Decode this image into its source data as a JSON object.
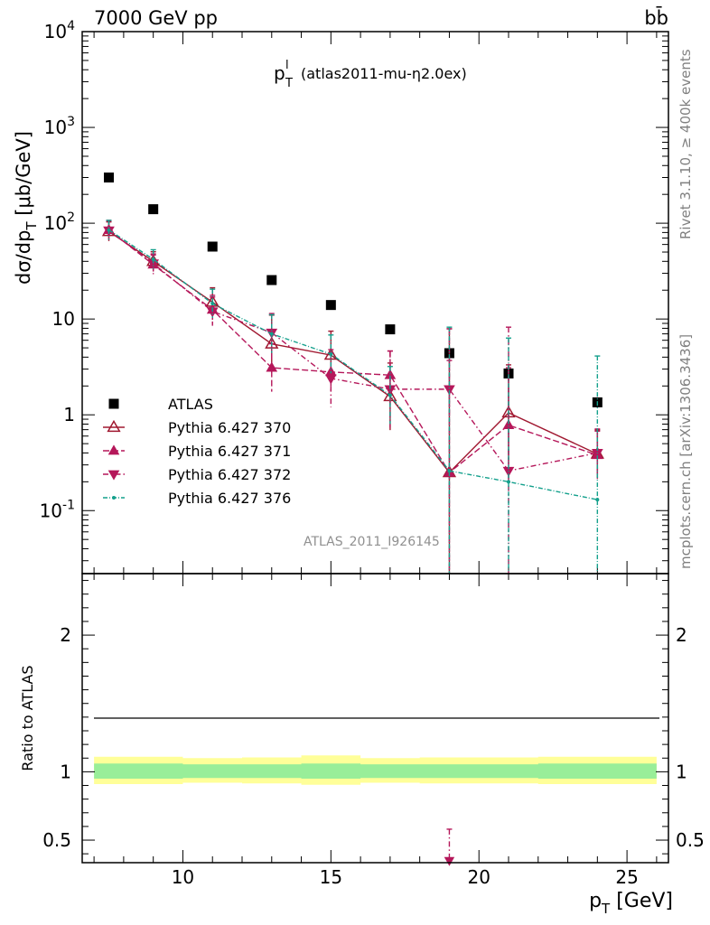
{
  "header": {
    "energy_label": "7000 GeV pp",
    "process_label": "bb̄",
    "rivet_label": "Rivet 3.1.10, ≥ 400k events",
    "mcplots_label": "mcplots.cern.ch [arXiv:1306.3436]",
    "analysis_label": "ATLAS_2011_I926145"
  },
  "chart_data": [
    {
      "type": "scatter",
      "panel": "main",
      "title_main": "p",
      "title_sup": "l",
      "title_sub": "T",
      "title_rest": "(atlas2011-mu-η2.0ex)",
      "ylabel": "dσ/dp_T [μb/GeV]",
      "yscale": "log",
      "xlim": [
        6.6,
        26.4
      ],
      "ylim": [
        0.022,
        10000
      ],
      "y_ticks": [
        {
          "v": 0.1,
          "label": "10^-1"
        },
        {
          "v": 1,
          "label": "1"
        },
        {
          "v": 10,
          "label": "10"
        },
        {
          "v": 100,
          "label": "10^2"
        },
        {
          "v": 1000,
          "label": "10^3"
        },
        {
          "v": 10000,
          "label": "10^4"
        }
      ],
      "legend": {
        "position": "lower-left"
      },
      "series": [
        {
          "name": "ATLAS",
          "color": "#000000",
          "marker": "square",
          "x": [
            7.5,
            9,
            11,
            13,
            15,
            17,
            19,
            21,
            24
          ],
          "y": [
            300,
            140,
            57,
            25.5,
            14,
            7.8,
            4.4,
            2.7,
            1.35
          ]
        },
        {
          "name": "Pythia 6.427 370",
          "color": "#a01830",
          "marker": "triangle-up-open",
          "dash": "",
          "x": [
            7.5,
            9,
            11,
            13,
            15,
            17,
            19,
            21,
            24
          ],
          "y": [
            82,
            40,
            15,
            5.5,
            4.2,
            1.55,
            0.25,
            1.05,
            0.39
          ],
          "err": [
            0.1,
            0.1,
            0.15,
            0.3,
            0.25,
            0.35,
            1.5,
            0.5,
            0.25
          ]
        },
        {
          "name": "Pythia 6.427 371",
          "color": "#b5175a",
          "marker": "triangle-up",
          "dash": "7,3",
          "x": [
            7.5,
            9,
            11,
            13,
            15,
            17,
            19,
            21,
            24
          ],
          "y": [
            85,
            37,
            12.5,
            3.1,
            2.8,
            2.6,
            0.25,
            0.78,
            0.38
          ],
          "err": [
            0.1,
            0.1,
            0.15,
            0.25,
            0.2,
            0.25,
            1.5,
            0.6,
            0.25
          ]
        },
        {
          "name": "Pythia 6.427 372",
          "color": "#b5175a",
          "marker": "triangle-down",
          "dash": "6,3,1.5,3",
          "x": [
            7.5,
            9,
            11,
            13,
            15,
            17,
            19,
            21,
            24
          ],
          "y": [
            84,
            38,
            12,
            7.2,
            2.4,
            1.85,
            1.85,
            0.26,
            0.4
          ],
          "err": [
            0.1,
            0.1,
            0.15,
            0.2,
            0.3,
            0.4,
            0.3,
            1.5,
            0.25
          ]
        },
        {
          "name": "Pythia 6.427 376",
          "color": "#14a08c",
          "marker": "dot",
          "dash": "5,2,1,2",
          "x": [
            7.5,
            9,
            11,
            13,
            15,
            17,
            19,
            21,
            24
          ],
          "y": [
            85,
            42,
            14.5,
            7.0,
            4.3,
            1.6,
            0.26,
            0.2,
            0.13
          ],
          "err": [
            0.1,
            0.1,
            0.15,
            0.2,
            0.2,
            0.3,
            1.5,
            1.5,
            1.5
          ]
        }
      ]
    },
    {
      "type": "line",
      "panel": "ratio",
      "ylabel": "Ratio to ATLAS",
      "xlabel": "p_T [GeV]",
      "xlim": [
        6.6,
        26.4
      ],
      "ylim": [
        0.335,
        2.45
      ],
      "y_ticks": [
        {
          "v": 0.5,
          "label": "0.5"
        },
        {
          "v": 1,
          "label": "1"
        },
        {
          "v": 2,
          "label": "2"
        }
      ],
      "x_ticks": [
        10,
        15,
        20,
        25
      ],
      "bands": [
        {
          "x": [
            7,
            8,
            10,
            12,
            14,
            16,
            18,
            20,
            22,
            26
          ],
          "lo_yellow": [
            0.91,
            0.91,
            0.92,
            0.915,
            0.905,
            0.92,
            0.915,
            0.915,
            0.91,
            0.91
          ],
          "hi_yellow": [
            1.11,
            1.11,
            1.1,
            1.105,
            1.12,
            1.1,
            1.105,
            1.105,
            1.11,
            1.11
          ],
          "lo_green": [
            0.95,
            0.95,
            0.955,
            0.955,
            0.95,
            0.955,
            0.955,
            0.955,
            0.95,
            0.95
          ],
          "hi_green": [
            1.06,
            1.06,
            1.055,
            1.055,
            1.06,
            1.055,
            1.055,
            1.055,
            1.06,
            1.06
          ]
        }
      ],
      "green_color": "#99ee99",
      "yellow_color": "#ffff99",
      "outlier": {
        "series": "Pythia 6.427 372",
        "x": 19,
        "y": 0.35,
        "err_top": 0.58,
        "color": "#b5175a"
      }
    }
  ]
}
